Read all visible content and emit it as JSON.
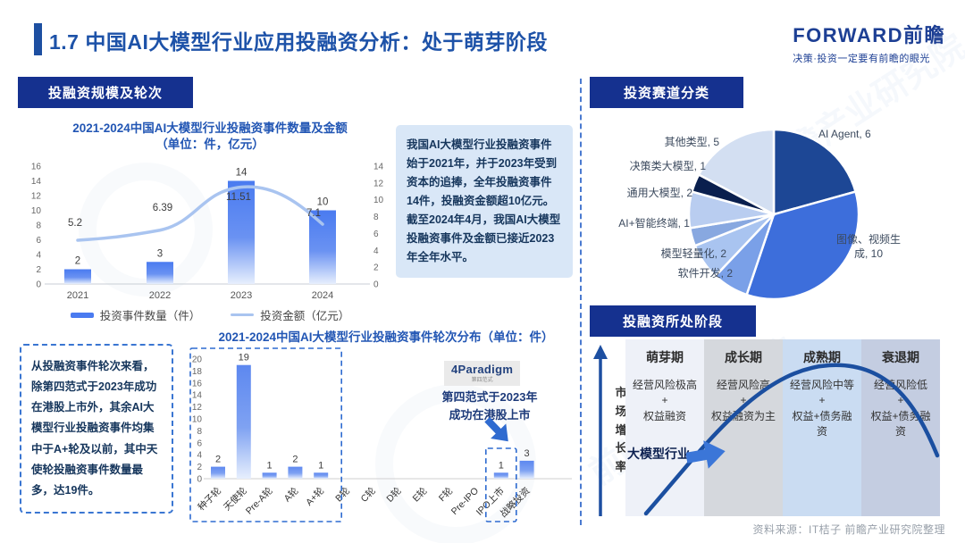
{
  "page_title": "1.7 中国AI大模型行业应用投融资分析：处于萌芽阶段",
  "brand": {
    "logo": "FORWARD前瞻",
    "tagline": "决策·投资一定要有前瞻的眼光"
  },
  "watermark": "前瞻产业研究院",
  "source_note": "资料来源：IT桔子 前瞻产业研究院整理",
  "sections": {
    "funding": {
      "badge": "投融资规模及轮次",
      "summary": [
        "我国AI大模型行业投融资事件始于2021年，并于2023年受到资本的追捧，全年投融资事件14件，投融资金额超10亿元。",
        "截至2024年4月，我国AI大模型投融资事件及金额已接近2023年全年水平。"
      ],
      "round_note": "从投融资事件轮次来看，除第四范式于2023年成功在港股上市外，其余AI大模型行业投融资事件均集中于A+轮及以前，其中天使轮投融资事件数量最多，达19件。",
      "ipo_annotation": {
        "logo": "4Paradigm",
        "logo_sub": "第四范式",
        "text": "第四范式于2023年成功在港股上市"
      }
    },
    "tracks": {
      "badge": "投资赛道分类"
    },
    "stage": {
      "badge": "投融资所处阶段",
      "y_axis_label": "市场增长率",
      "industry_marker": "大模型行业",
      "phases": [
        {
          "name": "萌芽期",
          "lines": [
            "经营风险极高",
            "+",
            "权益融资"
          ],
          "bg": "#eef1f8"
        },
        {
          "name": "成长期",
          "lines": [
            "经营风险高",
            "+",
            "权益融资为主"
          ],
          "bg": "#d5d8dd"
        },
        {
          "name": "成熟期",
          "lines": [
            "经营风险中等",
            "+",
            "权益+债务融资"
          ],
          "bg": "#cadcf2"
        },
        {
          "name": "衰退期",
          "lines": [
            "经营风险低",
            "+",
            "权益+债务融资"
          ],
          "bg": "#c4cde1"
        }
      ]
    }
  },
  "chart_data": [
    {
      "type": "bar+line",
      "title": "2021-2024中国AI大模型行业投融资事件数量及金额",
      "subtitle": "（单位：件，亿元）",
      "categories": [
        "2021",
        "2022",
        "2023",
        "2024"
      ],
      "series": [
        {
          "name": "投资事件数量（件）",
          "type": "bar",
          "axis": "left",
          "values": [
            2,
            3,
            14,
            10
          ],
          "color": "#4a7bf0"
        },
        {
          "name": "投资金额（亿元）",
          "type": "line",
          "axis": "right",
          "values": [
            5.2,
            6.39,
            11.51,
            7.1
          ],
          "color": "#a9c4f0"
        }
      ],
      "left_axis": {
        "min": 0,
        "max": 16,
        "step": 2
      },
      "right_axis": {
        "min": 0,
        "max": 14,
        "step": 2
      },
      "bar_color_bottom": "#e7effd",
      "legend_position": "bottom"
    },
    {
      "type": "bar",
      "title": "2021-2024中国AI大模型行业投融资事件轮次分布（单位：件）",
      "categories": [
        "种子轮",
        "天使轮",
        "Pre-A轮",
        "A轮",
        "A+轮",
        "B轮",
        "C轮",
        "D轮",
        "E轮",
        "F轮",
        "Pre-IPO",
        "IPO上市",
        "战略投资"
      ],
      "values": [
        2,
        19,
        1,
        2,
        1,
        0,
        0,
        0,
        0,
        0,
        0,
        1,
        3
      ],
      "y_axis": {
        "min": 0,
        "max": 20,
        "step": 2
      },
      "highlight_groups": [
        {
          "from": 0,
          "to": 4
        },
        {
          "from": 11,
          "to": 11
        }
      ]
    },
    {
      "type": "pie",
      "title": "投资赛道分类",
      "slices": [
        {
          "label": "AI Agent",
          "value": 6,
          "color": "#1d4795"
        },
        {
          "label": "图像、视频生成",
          "value": 10,
          "color": "#3d6edb"
        },
        {
          "label": "软件开发",
          "value": 2,
          "color": "#7aa0e8"
        },
        {
          "label": "模型轻量化",
          "value": 2,
          "color": "#a9c4f0"
        },
        {
          "label": "AI+智能终端",
          "value": 1,
          "color": "#88a8e0"
        },
        {
          "label": "通用大模型",
          "value": 2,
          "color": "#b9cdf0"
        },
        {
          "label": "决策类大模型",
          "value": 1,
          "color": "#0a1f4e"
        },
        {
          "label": "其他类型",
          "value": 5,
          "color": "#d3dff2"
        }
      ]
    }
  ]
}
